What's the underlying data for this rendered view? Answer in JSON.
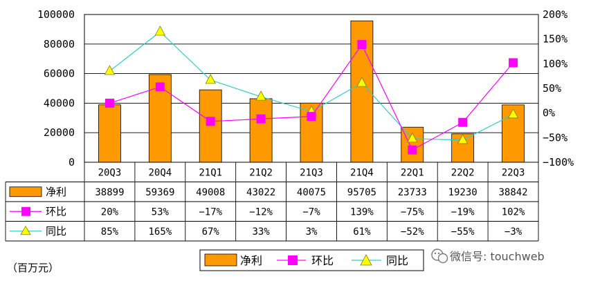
{
  "chart_data": {
    "type": "bar",
    "categories": [
      "20Q3",
      "20Q4",
      "21Q1",
      "21Q2",
      "21Q3",
      "21Q4",
      "22Q1",
      "22Q2",
      "22Q3"
    ],
    "series": [
      {
        "name": "净利",
        "type": "bar",
        "axis": "left",
        "color": "#FF9900",
        "values": [
          38899,
          59369,
          49008,
          43022,
          40075,
          95705,
          23733,
          19230,
          38842
        ],
        "labels": [
          "38899",
          "59369",
          "49008",
          "43022",
          "40075",
          "95705",
          "23733",
          "19230",
          "38842"
        ]
      },
      {
        "name": "环比",
        "type": "line",
        "axis": "right",
        "color": "#FF00FF",
        "values": [
          20,
          53,
          -17,
          -12,
          -7,
          139,
          -75,
          -19,
          102
        ],
        "labels": [
          "20%",
          "53%",
          "−17%",
          "−12%",
          "−7%",
          "139%",
          "−75%",
          "−19%",
          "102%"
        ]
      },
      {
        "name": "同比",
        "type": "line",
        "axis": "right",
        "color": "#33CCCC",
        "marker_color": "#FFFF00",
        "values": [
          85,
          165,
          67,
          33,
          3,
          61,
          -52,
          -55,
          -3
        ],
        "labels": [
          "85%",
          "165%",
          "67%",
          "33%",
          "3%",
          "61%",
          "−52%",
          "−55%",
          "−3%"
        ]
      }
    ],
    "y_left": {
      "min": 0,
      "max": 100000,
      "ticks": [
        0,
        20000,
        40000,
        60000,
        80000,
        100000
      ],
      "tick_labels": [
        "0",
        "20000",
        "40000",
        "60000",
        "80000",
        "100000"
      ]
    },
    "y_right": {
      "min": -100,
      "max": 200,
      "ticks": [
        -100,
        -50,
        0,
        50,
        100,
        150,
        200
      ],
      "tick_labels": [
        "−100%",
        "−50%",
        "0%",
        "50%",
        "100%",
        "150%",
        "200%"
      ]
    },
    "grid": true,
    "legend_position": "bottom"
  },
  "unit_note": "（百万元）",
  "watermark": "微信号: touchweb"
}
